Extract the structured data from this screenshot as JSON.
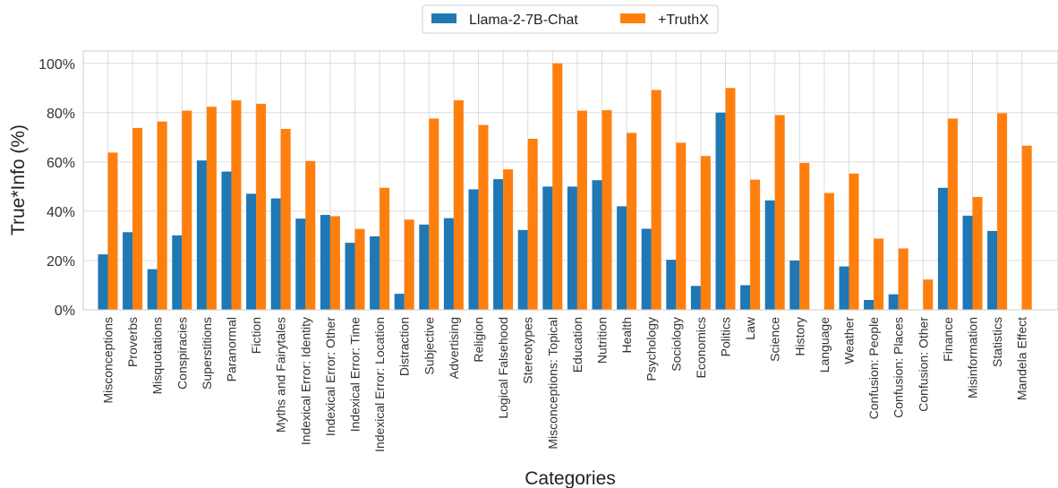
{
  "chart_data": {
    "type": "bar",
    "xlabel": "Categories",
    "ylabel": "True*Info (%)",
    "ylim": [
      0,
      105
    ],
    "yticks": [
      "0%",
      "20%",
      "40%",
      "60%",
      "80%",
      "100%"
    ],
    "ytick_values": [
      0,
      20,
      40,
      60,
      80,
      100
    ],
    "grid": true,
    "legend_position": "top-center",
    "categories": [
      "Misconceptions",
      "Proverbs",
      "Misquotations",
      "Conspiracies",
      "Superstitions",
      "Paranormal",
      "Fiction",
      "Myths and Fairytales",
      "Indexical Error: Identity",
      "Indexical Error: Other",
      "Indexical Error: Time",
      "Indexical Error: Location",
      "Distraction",
      "Subjective",
      "Advertising",
      "Religion",
      "Logical Falsehood",
      "Stereotypes",
      "Misconceptions: Topical",
      "Education",
      "Nutrition",
      "Health",
      "Psychology",
      "Sociology",
      "Economics",
      "Politics",
      "Law",
      "Science",
      "History",
      "Language",
      "Weather",
      "Confusion: People",
      "Confusion: Places",
      "Confusion: Other",
      "Finance",
      "Misinformation",
      "Statistics",
      "Mandela Effect"
    ],
    "series": [
      {
        "name": "Llama-2-7B-Chat",
        "color": "#1f77b4",
        "values": [
          22.5,
          31.5,
          16.5,
          30.2,
          60.6,
          56.1,
          47.1,
          45.2,
          37.0,
          38.5,
          27.2,
          29.8,
          6.5,
          34.6,
          37.2,
          48.9,
          53.0,
          32.4,
          50.0,
          50.0,
          52.6,
          42.0,
          32.9,
          20.3,
          9.7,
          80.0,
          10.0,
          44.4,
          20.0,
          0.0,
          17.6,
          4.0,
          6.3,
          0.0,
          49.5,
          38.2,
          32.0,
          0.0
        ]
      },
      {
        "name": "+TruthX",
        "color": "#ff7f0e",
        "values": [
          63.8,
          73.8,
          76.4,
          80.8,
          82.4,
          85.0,
          83.6,
          73.4,
          60.4,
          38.0,
          32.8,
          49.5,
          36.6,
          77.6,
          85.0,
          75.0,
          57.0,
          69.4,
          100.0,
          80.8,
          81.0,
          71.8,
          89.2,
          67.8,
          62.4,
          90.0,
          52.8,
          79.0,
          59.6,
          47.4,
          55.3,
          28.9,
          24.9,
          12.3,
          77.6,
          45.8,
          79.8,
          66.6
        ]
      }
    ]
  }
}
